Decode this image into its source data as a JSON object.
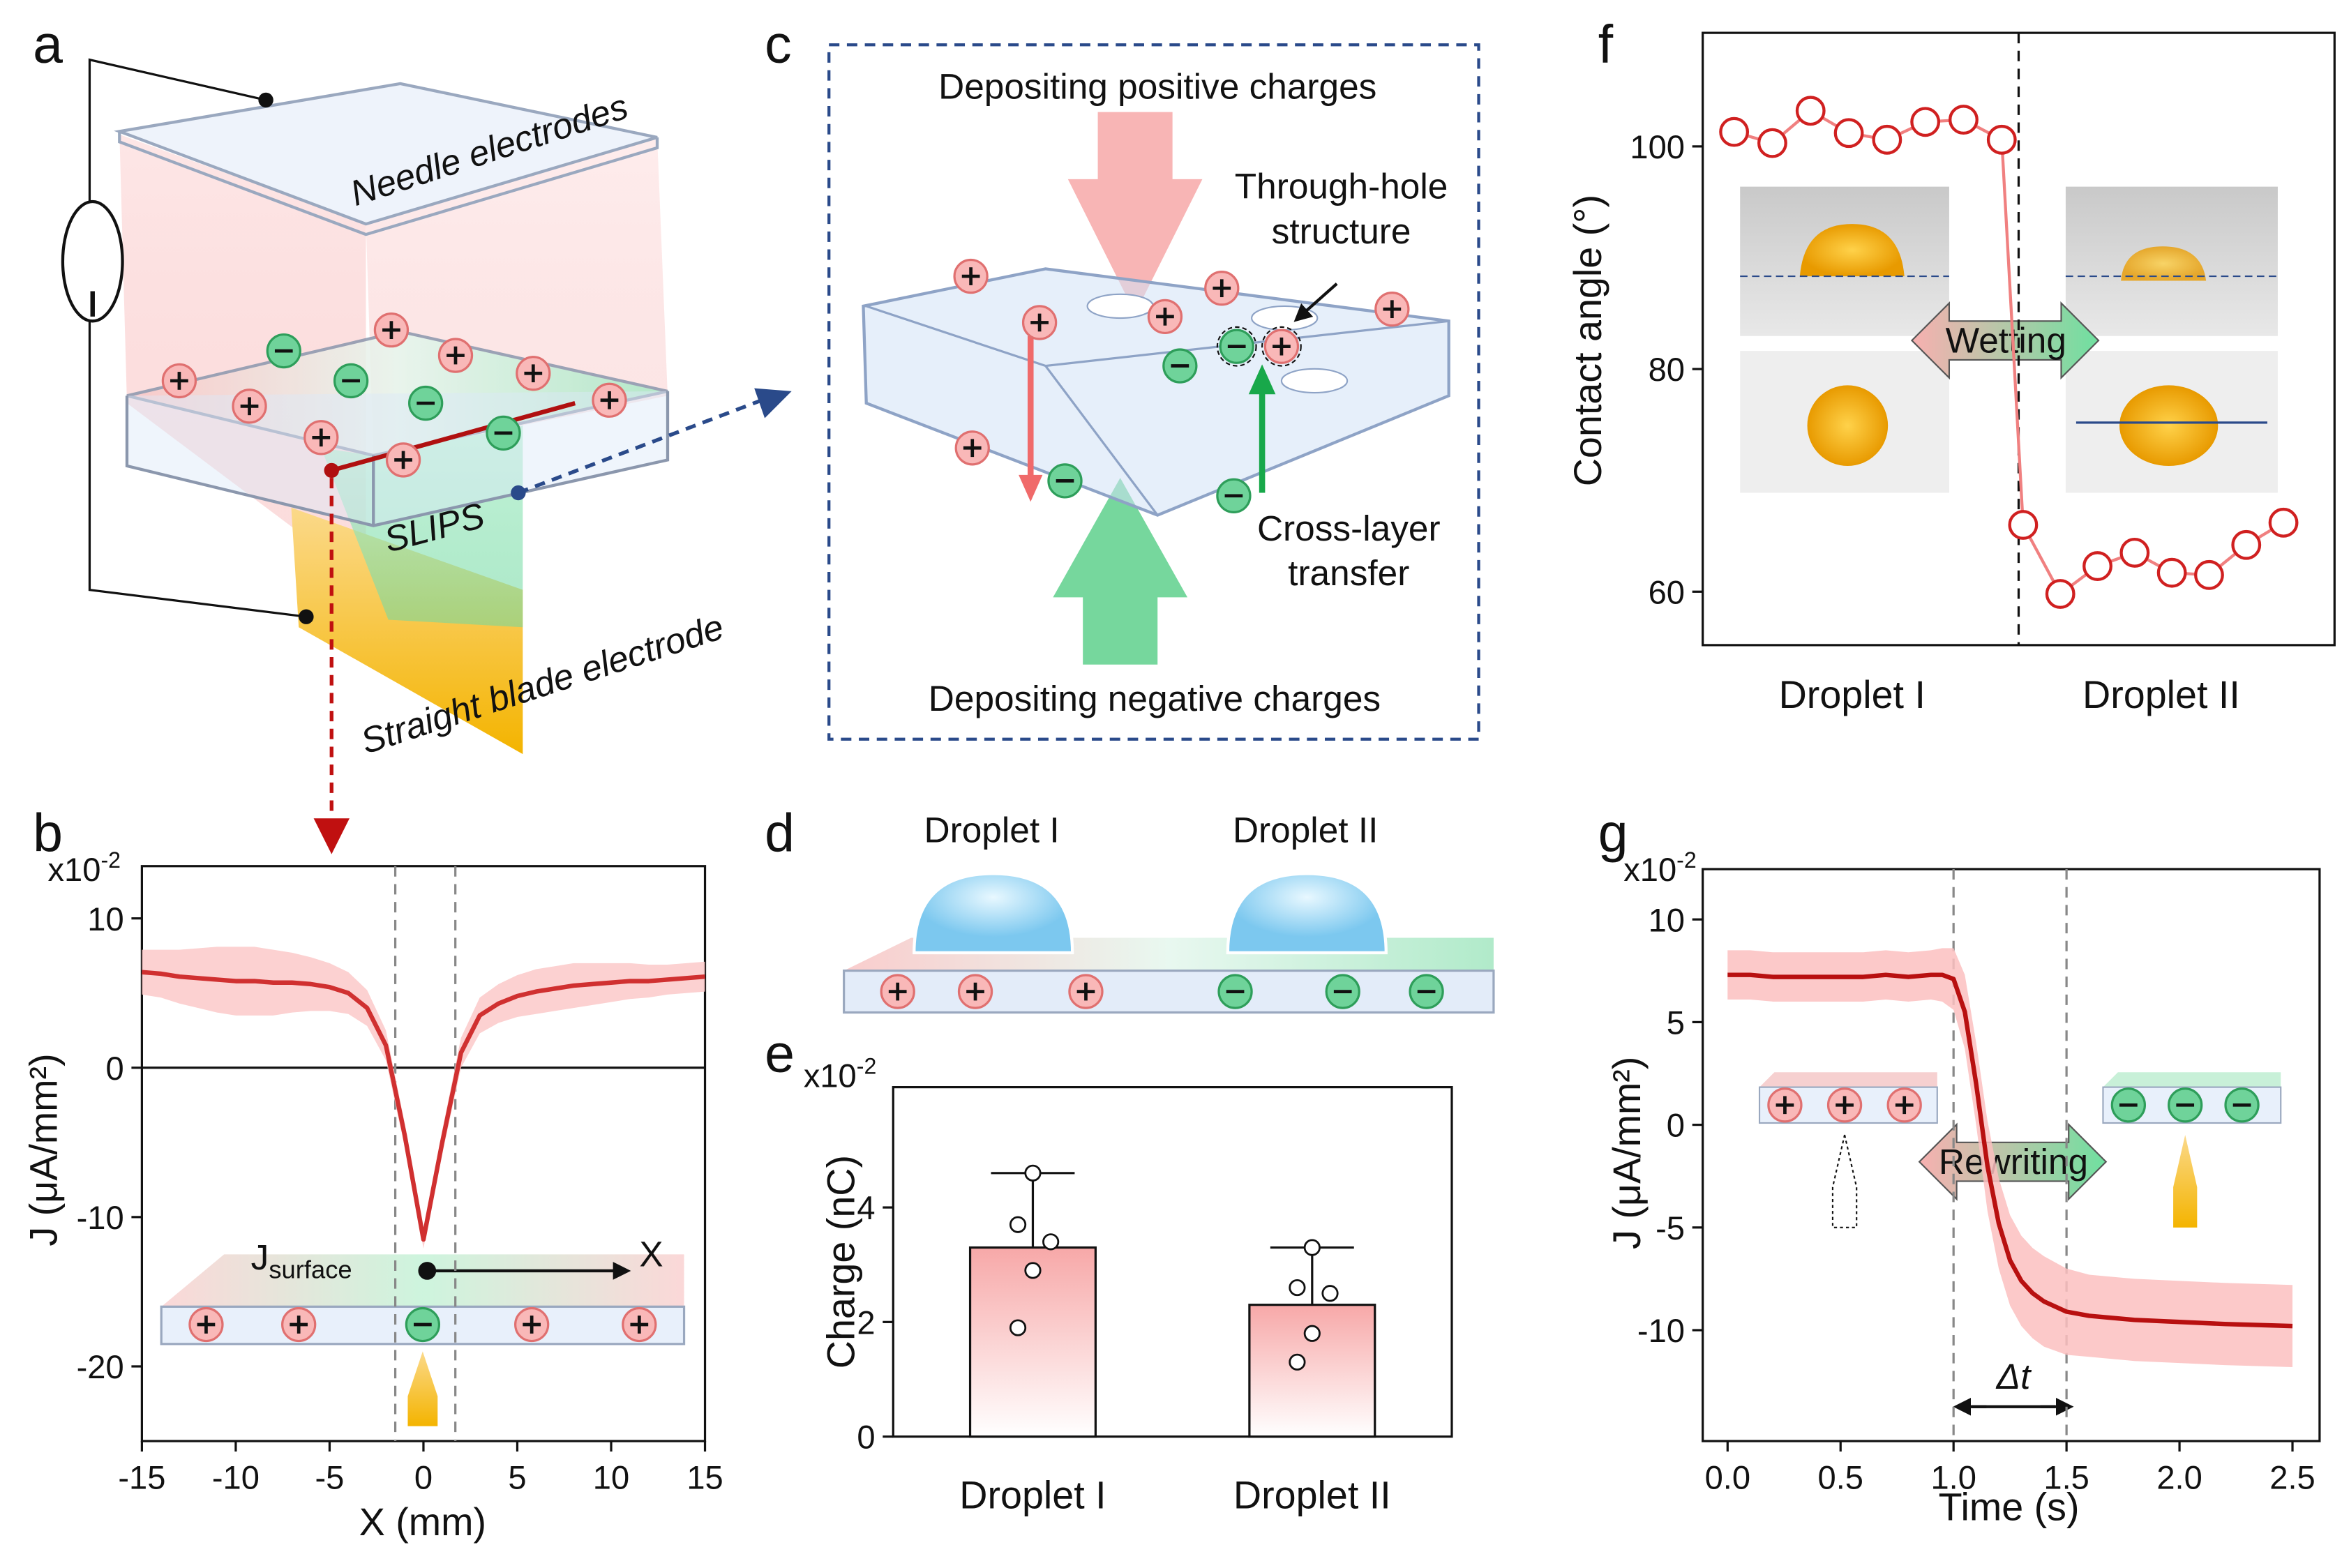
{
  "panels": {
    "labels": [
      "a",
      "b",
      "c",
      "d",
      "e",
      "f",
      "g"
    ],
    "a": {
      "needle": "Needle electrodes",
      "slips": "SLIPS",
      "blade": "Straight blade electrode"
    },
    "c": {
      "top": "Depositing positive charges",
      "hole_1": "Through-hole",
      "hole_2": "structure",
      "cross_1": "Cross-layer",
      "cross_2": "transfer",
      "bottom": "Depositing negative charges"
    },
    "d": {
      "left": "Droplet I",
      "right": "Droplet II"
    }
  },
  "chart_data": [
    {
      "type": "line",
      "ylabel": "J (μA/mm²)",
      "xlabel": "X (mm)",
      "y_multiplier": "x10",
      "y_multiplier_exp": "-2",
      "inset_j": "J",
      "inset_sub": "surface",
      "inset_x": "X",
      "x": [
        -15,
        -14,
        -13,
        -12,
        -11,
        -10,
        -9,
        -8,
        -7,
        -6,
        -5,
        -4,
        -3,
        -2,
        -1,
        0,
        1,
        2,
        3,
        4,
        5,
        6,
        7,
        8,
        9,
        10,
        11,
        12,
        13,
        14,
        15
      ],
      "values": [
        6.4,
        6.3,
        6.1,
        6.0,
        5.9,
        5.8,
        5.8,
        5.7,
        5.7,
        5.6,
        5.4,
        5.0,
        4.0,
        1.5,
        -4.5,
        -11.5,
        -5.0,
        1.0,
        3.5,
        4.3,
        4.8,
        5.1,
        5.3,
        5.5,
        5.6,
        5.7,
        5.8,
        5.8,
        5.9,
        6.0,
        6.1
      ],
      "errors": [
        1.5,
        1.6,
        1.8,
        2.0,
        2.2,
        2.3,
        2.3,
        2.2,
        2.0,
        1.8,
        1.6,
        1.4,
        1.2,
        1.0,
        0.8,
        0.6,
        0.8,
        1.0,
        1.2,
        1.3,
        1.4,
        1.5,
        1.5,
        1.5,
        1.4,
        1.3,
        1.2,
        1.1,
        1.0,
        1.0,
        1.0
      ],
      "color": "#d03030",
      "band_color": "#fbc9c9",
      "xlim": [
        -15,
        15
      ],
      "xticks": [
        -15,
        -10,
        -5,
        0,
        5,
        10,
        15
      ],
      "ylim": [
        -25,
        13.5
      ],
      "yticks": [
        -20,
        -10,
        0,
        10
      ],
      "vlines": [
        -1.5,
        1.7
      ],
      "hline": 0
    },
    {
      "type": "bar",
      "ylabel": "Charge (nC)",
      "y_multiplier": "x10",
      "y_multiplier_exp": "-2",
      "categories": [
        "Droplet I",
        "Droplet II"
      ],
      "values": [
        3.3,
        2.3
      ],
      "errors": [
        1.3,
        1.0
      ],
      "points": [
        [
          4.6,
          3.7,
          3.4,
          2.9,
          1.9
        ],
        [
          3.3,
          2.6,
          2.5,
          1.8,
          1.3
        ]
      ],
      "ylim": [
        0,
        6.1
      ],
      "yticks": [
        0,
        2,
        4
      ]
    },
    {
      "type": "scatter",
      "ylabel": "Contact angle (°)",
      "categories": [
        "Droplet I",
        "Droplet II"
      ],
      "values": [
        [
          101.3,
          100.3,
          103.2,
          101.2,
          100.6,
          102.2,
          102.4,
          100.6
        ],
        [
          66.0,
          59.8,
          62.3,
          63.5,
          61.7,
          61.5,
          64.2,
          66.2
        ]
      ],
      "color": "#d02020",
      "ylim": [
        55.2,
        110.2
      ],
      "yticks": [
        60,
        80,
        100
      ],
      "inset": "Wetting"
    },
    {
      "type": "line",
      "ylabel": "J (μA/mm²)",
      "xlabel": "Time (s)",
      "y_multiplier": "x10",
      "y_multiplier_exp": "-2",
      "inset": "Rewriting",
      "delta": "Δt",
      "x": [
        0,
        0.1,
        0.2,
        0.3,
        0.4,
        0.5,
        0.6,
        0.7,
        0.8,
        0.9,
        0.95,
        1.0,
        1.05,
        1.1,
        1.15,
        1.2,
        1.25,
        1.3,
        1.35,
        1.4,
        1.5,
        1.6,
        1.8,
        2.0,
        2.2,
        2.5
      ],
      "values": [
        7.3,
        7.3,
        7.2,
        7.2,
        7.2,
        7.2,
        7.2,
        7.3,
        7.2,
        7.3,
        7.3,
        7.1,
        5.5,
        2.0,
        -2.0,
        -4.8,
        -6.6,
        -7.6,
        -8.2,
        -8.6,
        -9.1,
        -9.3,
        -9.5,
        -9.6,
        -9.7,
        -9.8
      ],
      "errors": [
        1.2,
        1.2,
        1.2,
        1.2,
        1.2,
        1.2,
        1.2,
        1.2,
        1.2,
        1.2,
        1.3,
        1.5,
        1.8,
        2.0,
        2.2,
        2.2,
        2.2,
        2.2,
        2.2,
        2.2,
        2.1,
        2.0,
        2.0,
        2.0,
        2.0,
        2.0
      ],
      "color": "#b81010",
      "band_color": "#fbc0c0",
      "xlim": [
        -0.11,
        2.62
      ],
      "xticks": [
        {
          "value": 0,
          "label": "0.0"
        },
        0.5,
        {
          "value": 1,
          "label": "1.0"
        },
        1.5,
        {
          "value": 2,
          "label": "2.0"
        },
        2.5
      ],
      "ylim": [
        -15.4,
        12.45
      ],
      "yticks": [
        -10,
        -5,
        0,
        5,
        10
      ],
      "vlines": [
        1.0,
        1.5
      ]
    }
  ]
}
